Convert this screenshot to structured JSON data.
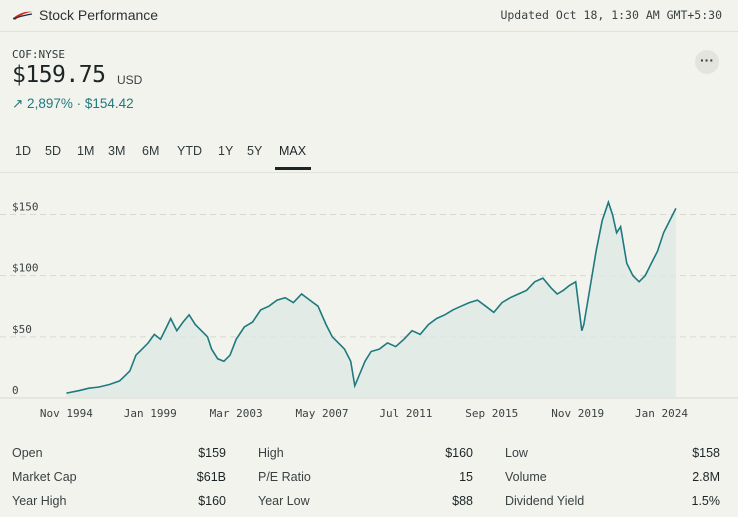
{
  "header": {
    "title": "Stock Performance",
    "updated": "Updated Oct 18, 1:30 AM GMT+5:30",
    "logo_color": "#d22e1e"
  },
  "quote": {
    "ticker": "COF:NYSE",
    "price": "$159.75",
    "currency": "USD",
    "change": "↗ 2,897% · $154.42",
    "more": "···"
  },
  "tabs": [
    "1D",
    "5D",
    "1M",
    "3M",
    "6M",
    "YTD",
    "1Y",
    "5Y",
    "MAX"
  ],
  "active_tab": "MAX",
  "chart_data": {
    "type": "area",
    "color": "#1e7a7f",
    "y_ticks": [
      "$150",
      "$100",
      "$50",
      "0"
    ],
    "y_tick_values": [
      150,
      100,
      50,
      0
    ],
    "ylim": [
      0,
      170
    ],
    "x_ticks": [
      "Nov 1994",
      "Jan 1999",
      "Mar 2003",
      "May 2007",
      "Jul 2011",
      "Sep 2015",
      "Nov 2019",
      "Jan 2024"
    ],
    "x_tick_values": [
      1994.9,
      1999.0,
      2003.2,
      2007.4,
      2011.5,
      2015.7,
      2019.9,
      2024.0
    ],
    "xlim": [
      1994.0,
      2025.0
    ],
    "grid": "dashed horizontal",
    "series": [
      {
        "x": [
          1994.9,
          1995.5,
          1996.0,
          1996.5,
          1997.0,
          1997.5,
          1998.0,
          1998.3,
          1998.6,
          1998.9,
          1999.2,
          1999.5,
          1999.8,
          2000.0,
          2000.3,
          2000.6,
          2000.9,
          2001.2,
          2001.5,
          2001.8,
          2002.0,
          2002.3,
          2002.6,
          2002.9,
          2003.2,
          2003.6,
          2004.0,
          2004.4,
          2004.8,
          2005.2,
          2005.6,
          2006.0,
          2006.4,
          2006.8,
          2007.2,
          2007.6,
          2007.9,
          2008.2,
          2008.5,
          2008.8,
          2009.0,
          2009.2,
          2009.5,
          2009.8,
          2010.2,
          2010.6,
          2011.0,
          2011.4,
          2011.8,
          2012.2,
          2012.6,
          2013.0,
          2013.4,
          2013.8,
          2014.2,
          2014.6,
          2015.0,
          2015.4,
          2015.8,
          2016.2,
          2016.6,
          2017.0,
          2017.4,
          2017.8,
          2018.2,
          2018.6,
          2018.9,
          2019.2,
          2019.5,
          2019.8,
          2020.1,
          2020.2,
          2020.5,
          2020.8,
          2021.1,
          2021.4,
          2021.6,
          2021.8,
          2022.0,
          2022.3,
          2022.6,
          2022.9,
          2023.2,
          2023.5,
          2023.8,
          2024.1,
          2024.4,
          2024.7
        ],
        "y": [
          4,
          6,
          8,
          9,
          11,
          14,
          22,
          35,
          40,
          45,
          52,
          48,
          58,
          65,
          55,
          62,
          68,
          60,
          55,
          50,
          40,
          32,
          30,
          35,
          48,
          58,
          62,
          72,
          75,
          80,
          82,
          78,
          85,
          80,
          75,
          60,
          50,
          45,
          40,
          30,
          10,
          18,
          30,
          38,
          40,
          45,
          42,
          48,
          55,
          52,
          60,
          65,
          68,
          72,
          75,
          78,
          80,
          75,
          70,
          78,
          82,
          85,
          88,
          95,
          98,
          90,
          85,
          88,
          92,
          95,
          55,
          60,
          90,
          120,
          145,
          160,
          150,
          135,
          140,
          110,
          100,
          95,
          100,
          110,
          120,
          135,
          145,
          155
        ]
      }
    ]
  },
  "stats": [
    {
      "label": "Open",
      "value": "$159"
    },
    {
      "label": "High",
      "value": "$160"
    },
    {
      "label": "Low",
      "value": "$158"
    },
    {
      "label": "Market Cap",
      "value": "$61B"
    },
    {
      "label": "P/E Ratio",
      "value": "15"
    },
    {
      "label": "Volume",
      "value": "2.8M"
    },
    {
      "label": "Year High",
      "value": "$160"
    },
    {
      "label": "Year Low",
      "value": "$88"
    },
    {
      "label": "Dividend Yield",
      "value": "1.5%"
    }
  ]
}
